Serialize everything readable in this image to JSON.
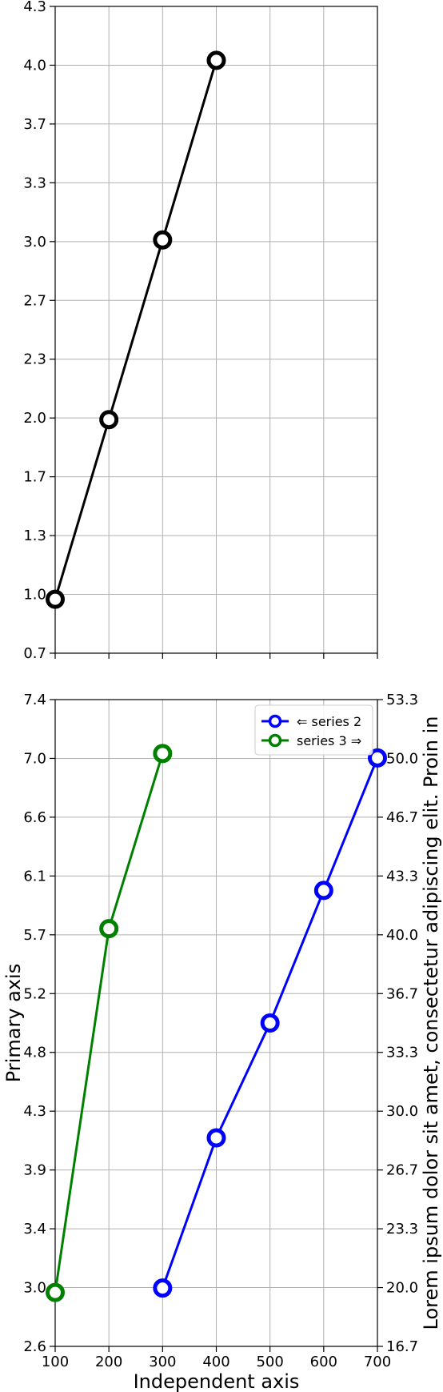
{
  "chart_data": [
    {
      "type": "line",
      "xlim": [
        100,
        700
      ],
      "ylim": [
        0.7,
        4.3
      ],
      "x_ticks": [
        "100",
        "200",
        "300",
        "400",
        "500",
        "600",
        "700"
      ],
      "y_ticks": [
        "0.7",
        "1.0",
        "1.3",
        "1.7",
        "2.0",
        "2.3",
        "2.7",
        "3.0",
        "3.3",
        "3.7",
        "4.0",
        "4.3"
      ],
      "show_x_tick_labels": false,
      "grid": true,
      "series": [
        {
          "color": "#000000",
          "marker": "open-circle",
          "x": [
            100,
            200,
            300,
            400
          ],
          "y": [
            1.0,
            2.0,
            3.0,
            4.0
          ]
        }
      ]
    },
    {
      "type": "line",
      "xlabel": "Independent axis",
      "ylabel": "Primary axis",
      "ylabel_right": "Lorem ipsum dolor sit amet, consectetur adipiscing elit. Proin in",
      "xlim": [
        100,
        700
      ],
      "ylim": [
        2.6,
        7.4
      ],
      "ylim_right": [
        16.7,
        53.3
      ],
      "x_ticks": [
        "100",
        "200",
        "300",
        "400",
        "500",
        "600",
        "700"
      ],
      "y_ticks": [
        "2.6",
        "3.0",
        "3.4",
        "3.9",
        "4.3",
        "4.8",
        "5.2",
        "5.7",
        "6.1",
        "6.6",
        "7.0",
        "7.4"
      ],
      "y_ticks_right": [
        "16.7",
        "20.0",
        "23.3",
        "26.7",
        "30.0",
        "33.3",
        "36.7",
        "40.0",
        "43.3",
        "46.7",
        "50.0",
        "53.3"
      ],
      "grid": true,
      "legend_position": "top-right",
      "series": [
        {
          "name": "⇐ series 2",
          "axis": "right",
          "color": "#0000ff",
          "marker": "open-circle",
          "x": [
            300,
            400,
            500,
            600,
            700
          ],
          "y": [
            20,
            28.5,
            35,
            42.5,
            50
          ]
        },
        {
          "name": "series 3 ⇒",
          "axis": "left",
          "color": "#008000",
          "marker": "open-circle",
          "x": [
            100,
            200,
            300
          ],
          "y": [
            3.0,
            5.7,
            7.0
          ]
        }
      ]
    }
  ]
}
